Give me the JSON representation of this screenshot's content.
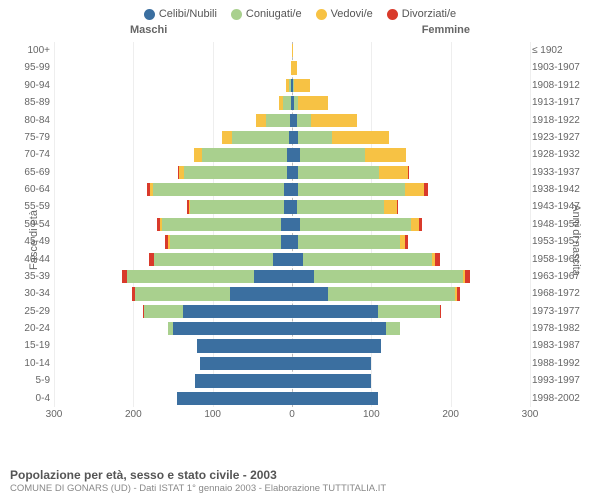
{
  "legend": [
    {
      "label": "Celibi/Nubili",
      "color": "#3b6fa0"
    },
    {
      "label": "Coniugati/e",
      "color": "#a9d08e"
    },
    {
      "label": "Vedovi/e",
      "color": "#f7c244"
    },
    {
      "label": "Divorziati/e",
      "color": "#d93a2b"
    }
  ],
  "headers": {
    "male": "Maschi",
    "female": "Femmine"
  },
  "axis_left_label": "Fasce di età",
  "axis_right_label": "Anni di nascita",
  "x_ticks": [
    300,
    200,
    100,
    0,
    100,
    200,
    300
  ],
  "x_max": 300,
  "title": "Popolazione per età, sesso e stato civile - 2003",
  "subtitle": "COMUNE DI GONARS (UD) - Dati ISTAT 1° gennaio 2003 - Elaborazione TUTTITALIA.IT",
  "colors": {
    "single": "#3b6fa0",
    "married": "#a9d08e",
    "widowed": "#f7c244",
    "divorced": "#d93a2b",
    "grid": "#eeeeee",
    "center": "#bbbbbb"
  },
  "rows": [
    {
      "age": "100+",
      "birth": "≤ 1902",
      "m": {
        "s": 0,
        "m": 0,
        "w": 0,
        "d": 0
      },
      "f": {
        "s": 0,
        "m": 0,
        "w": 1,
        "d": 0
      }
    },
    {
      "age": "95-99",
      "birth": "1903-1907",
      "m": {
        "s": 0,
        "m": 0,
        "w": 1,
        "d": 0
      },
      "f": {
        "s": 0,
        "m": 0,
        "w": 6,
        "d": 0
      }
    },
    {
      "age": "90-94",
      "birth": "1908-1912",
      "m": {
        "s": 1,
        "m": 3,
        "w": 3,
        "d": 0
      },
      "f": {
        "s": 1,
        "m": 2,
        "w": 20,
        "d": 0
      }
    },
    {
      "age": "85-89",
      "birth": "1913-1917",
      "m": {
        "s": 1,
        "m": 10,
        "w": 5,
        "d": 0
      },
      "f": {
        "s": 3,
        "m": 4,
        "w": 38,
        "d": 0
      }
    },
    {
      "age": "80-84",
      "birth": "1918-1922",
      "m": {
        "s": 3,
        "m": 30,
        "w": 12,
        "d": 0
      },
      "f": {
        "s": 6,
        "m": 18,
        "w": 58,
        "d": 0
      }
    },
    {
      "age": "75-79",
      "birth": "1923-1927",
      "m": {
        "s": 4,
        "m": 72,
        "w": 12,
        "d": 0
      },
      "f": {
        "s": 8,
        "m": 42,
        "w": 72,
        "d": 0
      }
    },
    {
      "age": "70-74",
      "birth": "1928-1932",
      "m": {
        "s": 6,
        "m": 108,
        "w": 10,
        "d": 0
      },
      "f": {
        "s": 10,
        "m": 82,
        "w": 52,
        "d": 0
      }
    },
    {
      "age": "65-69",
      "birth": "1933-1937",
      "m": {
        "s": 6,
        "m": 130,
        "w": 6,
        "d": 2
      },
      "f": {
        "s": 8,
        "m": 102,
        "w": 36,
        "d": 2
      }
    },
    {
      "age": "60-64",
      "birth": "1938-1942",
      "m": {
        "s": 10,
        "m": 165,
        "w": 4,
        "d": 4
      },
      "f": {
        "s": 8,
        "m": 135,
        "w": 24,
        "d": 4
      }
    },
    {
      "age": "55-59",
      "birth": "1943-1947",
      "m": {
        "s": 10,
        "m": 118,
        "w": 2,
        "d": 2
      },
      "f": {
        "s": 6,
        "m": 110,
        "w": 16,
        "d": 2
      }
    },
    {
      "age": "50-54",
      "birth": "1948-1952",
      "m": {
        "s": 14,
        "m": 150,
        "w": 2,
        "d": 4
      },
      "f": {
        "s": 10,
        "m": 140,
        "w": 10,
        "d": 4
      }
    },
    {
      "age": "45-49",
      "birth": "1953-1957",
      "m": {
        "s": 14,
        "m": 140,
        "w": 2,
        "d": 4
      },
      "f": {
        "s": 8,
        "m": 128,
        "w": 6,
        "d": 4
      }
    },
    {
      "age": "40-44",
      "birth": "1958-1962",
      "m": {
        "s": 24,
        "m": 150,
        "w": 0,
        "d": 6
      },
      "f": {
        "s": 14,
        "m": 162,
        "w": 4,
        "d": 6
      }
    },
    {
      "age": "35-39",
      "birth": "1963-1967",
      "m": {
        "s": 48,
        "m": 160,
        "w": 0,
        "d": 6
      },
      "f": {
        "s": 28,
        "m": 188,
        "w": 2,
        "d": 6
      }
    },
    {
      "age": "30-34",
      "birth": "1968-1972",
      "m": {
        "s": 78,
        "m": 120,
        "w": 0,
        "d": 4
      },
      "f": {
        "s": 46,
        "m": 160,
        "w": 2,
        "d": 4
      }
    },
    {
      "age": "25-29",
      "birth": "1973-1977",
      "m": {
        "s": 138,
        "m": 48,
        "w": 0,
        "d": 2
      },
      "f": {
        "s": 108,
        "m": 78,
        "w": 0,
        "d": 2
      }
    },
    {
      "age": "20-24",
      "birth": "1978-1982",
      "m": {
        "s": 150,
        "m": 6,
        "w": 0,
        "d": 0
      },
      "f": {
        "s": 118,
        "m": 18,
        "w": 0,
        "d": 0
      }
    },
    {
      "age": "15-19",
      "birth": "1983-1987",
      "m": {
        "s": 120,
        "m": 0,
        "w": 0,
        "d": 0
      },
      "f": {
        "s": 112,
        "m": 0,
        "w": 0,
        "d": 0
      }
    },
    {
      "age": "10-14",
      "birth": "1988-1992",
      "m": {
        "s": 116,
        "m": 0,
        "w": 0,
        "d": 0
      },
      "f": {
        "s": 100,
        "m": 0,
        "w": 0,
        "d": 0
      }
    },
    {
      "age": "5-9",
      "birth": "1993-1997",
      "m": {
        "s": 122,
        "m": 0,
        "w": 0,
        "d": 0
      },
      "f": {
        "s": 100,
        "m": 0,
        "w": 0,
        "d": 0
      }
    },
    {
      "age": "0-4",
      "birth": "1998-2002",
      "m": {
        "s": 145,
        "m": 0,
        "w": 0,
        "d": 0
      },
      "f": {
        "s": 108,
        "m": 0,
        "w": 0,
        "d": 0
      }
    }
  ]
}
